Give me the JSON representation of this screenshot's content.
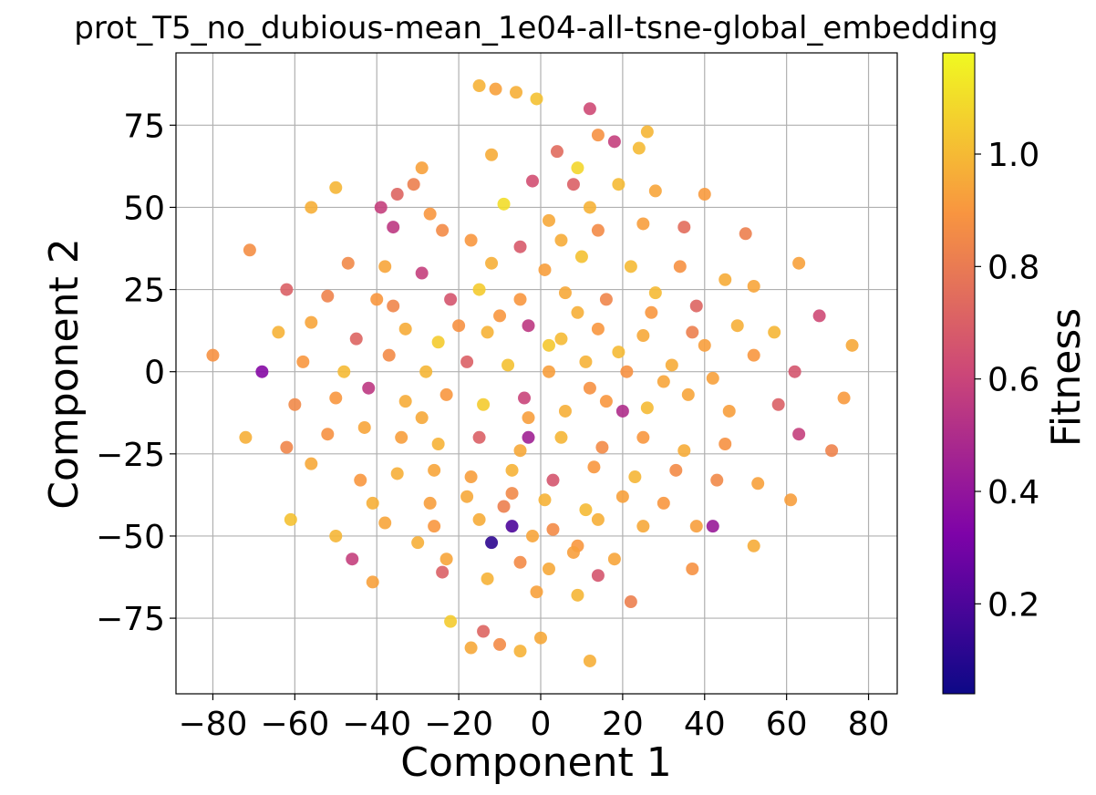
{
  "chart_data": {
    "type": "scatter",
    "title": "prot_T5_no_dubious-mean_1e04-all-tsne-global_embedding",
    "xlabel": "Component 1",
    "ylabel": "Component 2",
    "xlim": [
      -89,
      87
    ],
    "ylim": [
      -98,
      97
    ],
    "grid": true,
    "x_ticks": [
      -80,
      -60,
      -40,
      -20,
      0,
      20,
      40,
      60,
      80
    ],
    "x_tick_labels": [
      "−80",
      "−60",
      "−40",
      "−20",
      "0",
      "20",
      "40",
      "60",
      "80"
    ],
    "y_ticks": [
      -75,
      -50,
      -25,
      0,
      25,
      50,
      75
    ],
    "y_tick_labels": [
      "−75",
      "−50",
      "−25",
      "0",
      "25",
      "50",
      "75"
    ],
    "colorbar": {
      "label": "Fitness",
      "colormap": "plasma",
      "range": [
        0.04,
        1.18
      ],
      "ticks": [
        0.2,
        0.4,
        0.6,
        0.8,
        1.0
      ],
      "tick_labels": [
        "0.2",
        "0.4",
        "0.6",
        "0.8",
        "1.0"
      ]
    },
    "points": [
      [
        -15,
        87,
        0.98
      ],
      [
        -11,
        86,
        0.93
      ],
      [
        -6,
        85,
        0.97
      ],
      [
        -1,
        83,
        1.02
      ],
      [
        12,
        80,
        0.62
      ],
      [
        26,
        73,
        0.99
      ],
      [
        24,
        68,
        1.0
      ],
      [
        -12,
        66,
        0.96
      ],
      [
        4,
        67,
        0.74
      ],
      [
        14,
        72,
        0.88
      ],
      [
        18,
        70,
        0.58
      ],
      [
        9,
        62,
        1.08
      ],
      [
        -29,
        62,
        0.93
      ],
      [
        -31,
        57,
        0.82
      ],
      [
        -35,
        54,
        0.72
      ],
      [
        -39,
        50,
        0.58
      ],
      [
        -36,
        44,
        0.55
      ],
      [
        -27,
        48,
        0.9
      ],
      [
        -24,
        43,
        0.86
      ],
      [
        -50,
        56,
        0.99
      ],
      [
        -56,
        50,
        0.97
      ],
      [
        -2,
        58,
        0.64
      ],
      [
        8,
        57,
        0.7
      ],
      [
        19,
        57,
        1.0
      ],
      [
        28,
        55,
        0.94
      ],
      [
        40,
        54,
        0.91
      ],
      [
        -9,
        51,
        1.1
      ],
      [
        2,
        46,
        0.95
      ],
      [
        12,
        50,
        0.98
      ],
      [
        -17,
        40,
        0.9
      ],
      [
        -5,
        38,
        0.68
      ],
      [
        5,
        40,
        0.96
      ],
      [
        14,
        43,
        0.86
      ],
      [
        25,
        45,
        0.92
      ],
      [
        35,
        44,
        0.75
      ],
      [
        50,
        42,
        0.82
      ],
      [
        -71,
        37,
        0.87
      ],
      [
        -47,
        33,
        0.85
      ],
      [
        -38,
        32,
        0.94
      ],
      [
        -29,
        30,
        0.58
      ],
      [
        -12,
        33,
        0.97
      ],
      [
        1,
        31,
        0.92
      ],
      [
        10,
        35,
        1.02
      ],
      [
        22,
        32,
        1.0
      ],
      [
        34,
        32,
        0.88
      ],
      [
        45,
        28,
        0.96
      ],
      [
        52,
        26,
        0.94
      ],
      [
        63,
        33,
        0.93
      ],
      [
        -62,
        25,
        0.7
      ],
      [
        -52,
        23,
        0.83
      ],
      [
        -40,
        22,
        0.9
      ],
      [
        -22,
        22,
        0.66
      ],
      [
        -15,
        25,
        1.05
      ],
      [
        -5,
        22,
        0.9
      ],
      [
        6,
        24,
        0.95
      ],
      [
        16,
        22,
        0.84
      ],
      [
        28,
        24,
        1.0
      ],
      [
        38,
        20,
        0.72
      ],
      [
        -64,
        12,
        0.98
      ],
      [
        -56,
        15,
        0.94
      ],
      [
        -45,
        10,
        0.72
      ],
      [
        -33,
        13,
        0.96
      ],
      [
        -25,
        9,
        1.05
      ],
      [
        -13,
        12,
        0.98
      ],
      [
        -3,
        14,
        0.55
      ],
      [
        5,
        10,
        1.0
      ],
      [
        14,
        13,
        0.9
      ],
      [
        25,
        11,
        0.95
      ],
      [
        37,
        12,
        0.82
      ],
      [
        48,
        14,
        0.97
      ],
      [
        57,
        12,
        0.99
      ],
      [
        68,
        17,
        0.62
      ],
      [
        76,
        8,
        0.95
      ],
      [
        -80,
        5,
        0.88
      ],
      [
        -68,
        0,
        0.35
      ],
      [
        -58,
        3,
        0.9
      ],
      [
        -48,
        0,
        1.0
      ],
      [
        -37,
        5,
        0.86
      ],
      [
        -28,
        0,
        0.99
      ],
      [
        -18,
        3,
        0.7
      ],
      [
        -8,
        2,
        1.02
      ],
      [
        2,
        0,
        0.92
      ],
      [
        11,
        3,
        0.98
      ],
      [
        21,
        0,
        0.88
      ],
      [
        32,
        2,
        0.96
      ],
      [
        42,
        -2,
        0.93
      ],
      [
        52,
        5,
        0.9
      ],
      [
        62,
        0,
        0.66
      ],
      [
        -60,
        -10,
        0.85
      ],
      [
        -50,
        -8,
        0.9
      ],
      [
        -42,
        -5,
        0.55
      ],
      [
        -33,
        -9,
        0.96
      ],
      [
        -23,
        -7,
        0.9
      ],
      [
        -14,
        -10,
        1.05
      ],
      [
        -4,
        -8,
        0.6
      ],
      [
        6,
        -12,
        0.97
      ],
      [
        16,
        -9,
        0.9
      ],
      [
        26,
        -11,
        1.0
      ],
      [
        36,
        -7,
        0.94
      ],
      [
        46,
        -12,
        0.92
      ],
      [
        58,
        -10,
        0.7
      ],
      [
        74,
        -8,
        0.91
      ],
      [
        -72,
        -20,
        0.97
      ],
      [
        -62,
        -23,
        0.84
      ],
      [
        -52,
        -19,
        0.88
      ],
      [
        -43,
        -17,
        0.94
      ],
      [
        -34,
        -20,
        0.92
      ],
      [
        -25,
        -22,
        0.98
      ],
      [
        -15,
        -20,
        0.7
      ],
      [
        -5,
        -24,
        0.95
      ],
      [
        5,
        -20,
        0.99
      ],
      [
        15,
        -23,
        0.86
      ],
      [
        25,
        -20,
        0.9
      ],
      [
        35,
        -24,
        0.96
      ],
      [
        45,
        -22,
        0.88
      ],
      [
        63,
        -19,
        0.58
      ],
      [
        71,
        -24,
        0.83
      ],
      [
        -56,
        -28,
        0.95
      ],
      [
        -44,
        -33,
        0.9
      ],
      [
        -35,
        -31,
        0.97
      ],
      [
        -26,
        -30,
        0.94
      ],
      [
        -17,
        -32,
        0.92
      ],
      [
        -7,
        -30,
        0.98
      ],
      [
        3,
        -33,
        0.66
      ],
      [
        13,
        -29,
        0.9
      ],
      [
        23,
        -32,
        0.99
      ],
      [
        33,
        -30,
        0.86
      ],
      [
        43,
        -33,
        0.85
      ],
      [
        53,
        -34,
        0.93
      ],
      [
        -41,
        -40,
        0.97
      ],
      [
        -27,
        -40,
        0.92
      ],
      [
        -18,
        -38,
        0.95
      ],
      [
        -9,
        -41,
        0.82
      ],
      [
        1,
        -39,
        0.98
      ],
      [
        11,
        -42,
        1.0
      ],
      [
        20,
        -38,
        0.93
      ],
      [
        30,
        -40,
        0.9
      ],
      [
        61,
        -39,
        0.92
      ],
      [
        -61,
        -45,
        1.02
      ],
      [
        -38,
        -46,
        0.94
      ],
      [
        -26,
        -47,
        0.9
      ],
      [
        -15,
        -45,
        0.96
      ],
      [
        -7,
        -47,
        0.2
      ],
      [
        3,
        -48,
        0.86
      ],
      [
        14,
        -45,
        0.97
      ],
      [
        25,
        -47,
        0.95
      ],
      [
        38,
        -47,
        0.92
      ],
      [
        42,
        -47,
        0.42
      ],
      [
        -50,
        -50,
        0.99
      ],
      [
        -30,
        -52,
        0.97
      ],
      [
        -12,
        -52,
        0.12
      ],
      [
        -2,
        -50,
        0.94
      ],
      [
        9,
        -53,
        0.9
      ],
      [
        52,
        -53,
        0.96
      ],
      [
        -46,
        -57,
        0.58
      ],
      [
        -23,
        -57,
        0.94
      ],
      [
        -5,
        -58,
        0.86
      ],
      [
        8,
        -55,
        0.92
      ],
      [
        18,
        -57,
        0.94
      ],
      [
        37,
        -60,
        0.88
      ],
      [
        -41,
        -64,
        0.93
      ],
      [
        -24,
        -61,
        0.7
      ],
      [
        -13,
        -63,
        0.98
      ],
      [
        2,
        -60,
        0.95
      ],
      [
        14,
        -62,
        0.66
      ],
      [
        -1,
        -67,
        0.93
      ],
      [
        9,
        -68,
        0.99
      ],
      [
        22,
        -70,
        0.82
      ],
      [
        -22,
        -76,
        1.05
      ],
      [
        -14,
        -79,
        0.72
      ],
      [
        -10,
        -83,
        0.86
      ],
      [
        -5,
        -85,
        0.98
      ],
      [
        0,
        -81,
        0.95
      ],
      [
        12,
        -88,
        0.97
      ],
      [
        -17,
        -84,
        0.95
      ],
      [
        -3,
        -20,
        0.45
      ],
      [
        20,
        -12,
        0.5
      ],
      [
        -10,
        17,
        0.9
      ],
      [
        9,
        18,
        0.97
      ],
      [
        19,
        6,
        1.0
      ],
      [
        -20,
        14,
        0.88
      ],
      [
        30,
        -3,
        0.94
      ],
      [
        -3,
        -14,
        0.92
      ],
      [
        12,
        -5,
        0.88
      ],
      [
        2,
        8,
        1.04
      ],
      [
        -7,
        -37,
        0.85
      ],
      [
        27,
        18,
        0.9
      ],
      [
        -29,
        -14,
        0.95
      ],
      [
        40,
        8,
        0.92
      ],
      [
        -36,
        20,
        0.84
      ]
    ]
  }
}
